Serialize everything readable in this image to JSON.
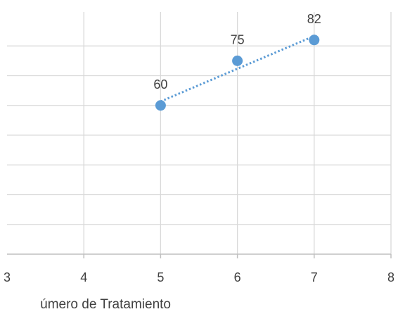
{
  "chart_data": {
    "type": "scatter",
    "title": "",
    "xlabel": "úmero de Tratamiento",
    "ylabel": "",
    "x_ticks": [
      "3",
      "4",
      "5",
      "6",
      "7",
      "8"
    ],
    "xlim": [
      3,
      8
    ],
    "ylim": [
      10,
      90
    ],
    "grid": true,
    "legend": "none",
    "series": [
      {
        "x": [
          5,
          6,
          7
        ],
        "y": [
          60,
          75,
          82
        ],
        "labels": [
          "60",
          "75",
          "82"
        ],
        "color": "#5b9bd5"
      }
    ],
    "trendline": {
      "type": "linear",
      "style": "dotted",
      "color": "#5b9bd5",
      "from_x": 5,
      "to_x": 7
    }
  }
}
